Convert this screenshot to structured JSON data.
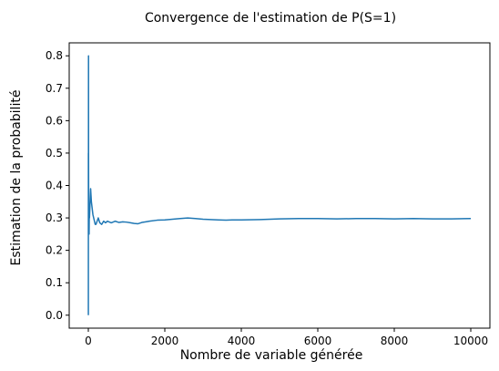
{
  "chart_data": {
    "type": "line",
    "title": "Convergence de l'estimation de P(S=1)",
    "xlabel": "Nombre de variable générée",
    "ylabel": "Estimation de la probabilité",
    "xlim": [
      -500,
      10500
    ],
    "ylim": [
      -0.04,
      0.84
    ],
    "x_ticks": [
      0,
      2000,
      4000,
      6000,
      8000,
      10000
    ],
    "x_tick_labels": [
      "0",
      "2000",
      "4000",
      "6000",
      "8000",
      "10000"
    ],
    "y_ticks": [
      0.0,
      0.1,
      0.2,
      0.3,
      0.4,
      0.5,
      0.6,
      0.7,
      0.8
    ],
    "y_tick_labels": [
      "0.0",
      "0.1",
      "0.2",
      "0.3",
      "0.4",
      "0.5",
      "0.6",
      "0.7",
      "0.8"
    ],
    "grid": false,
    "line_color": "#1f77b4",
    "series": [
      {
        "x": [
          1,
          2,
          3,
          4,
          5,
          6,
          8,
          10,
          15,
          20,
          25,
          30,
          40,
          50,
          60,
          70,
          80,
          90,
          100,
          120,
          140,
          160,
          180,
          200,
          230,
          260,
          300,
          350,
          400,
          450,
          500,
          600,
          700,
          800,
          900,
          1000,
          1100,
          1200,
          1300,
          1400,
          1500,
          1600,
          1800,
          2000,
          2200,
          2400,
          2600,
          2800,
          3000,
          3200,
          3400,
          3600,
          3800,
          4000,
          4500,
          5000,
          5500,
          6000,
          6500,
          7000,
          7500,
          8000,
          8500,
          9000,
          9500,
          10000
        ],
        "y": [
          0.0,
          0.5,
          0.33,
          0.5,
          0.8,
          0.5,
          0.38,
          0.3,
          0.27,
          0.25,
          0.32,
          0.3,
          0.33,
          0.36,
          0.39,
          0.37,
          0.35,
          0.34,
          0.33,
          0.31,
          0.3,
          0.29,
          0.28,
          0.28,
          0.29,
          0.3,
          0.285,
          0.28,
          0.29,
          0.285,
          0.29,
          0.285,
          0.29,
          0.286,
          0.288,
          0.287,
          0.285,
          0.283,
          0.282,
          0.286,
          0.288,
          0.29,
          0.293,
          0.294,
          0.296,
          0.298,
          0.3,
          0.298,
          0.296,
          0.295,
          0.294,
          0.293,
          0.294,
          0.294,
          0.295,
          0.297,
          0.298,
          0.298,
          0.297,
          0.298,
          0.298,
          0.297,
          0.298,
          0.297,
          0.297,
          0.298
        ]
      }
    ]
  }
}
